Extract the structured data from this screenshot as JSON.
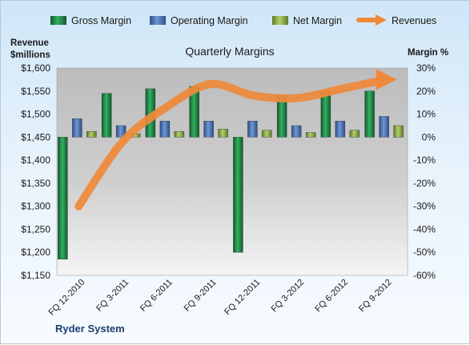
{
  "chart_data": {
    "type": "bar",
    "title": "Quarterly Margins",
    "company": "Ryder System",
    "left_axis_title_line1": "Revenue",
    "left_axis_title_line2": "$millions",
    "right_axis_title": "Margin %",
    "left_axis": {
      "min": 1150,
      "max": 1600,
      "step": 50
    },
    "right_axis": {
      "min": -60,
      "max": 30,
      "step": 10
    },
    "left_ticks": [
      "$1,600",
      "$1,550",
      "$1,500",
      "$1,450",
      "$1,400",
      "$1,350",
      "$1,300",
      "$1,250",
      "$1,200",
      "$1,150"
    ],
    "right_ticks": [
      "30%",
      "20%",
      "10%",
      "0%",
      "-10%",
      "-20%",
      "-30%",
      "-40%",
      "-50%",
      "-60%"
    ],
    "categories": [
      "FQ 12-2010",
      "FQ 3-2011",
      "FQ 6-2011",
      "FQ 9-2011",
      "FQ 12-2011",
      "FQ 3-2012",
      "FQ 6-2012",
      "FQ 9-2012"
    ],
    "series": [
      {
        "name": "Gross Margin",
        "axis": "right",
        "color": "#1e8a45",
        "values": [
          -53,
          19,
          21,
          22,
          -50,
          18,
          20,
          20
        ]
      },
      {
        "name": "Operating Margin",
        "axis": "right",
        "color": "#4f78b8",
        "values": [
          8,
          5,
          7,
          7,
          7,
          5,
          7,
          9
        ]
      },
      {
        "name": "Net Margin",
        "axis": "right",
        "color": "#8fb04a",
        "values": [
          2.5,
          1.5,
          2.5,
          3.5,
          3,
          2,
          3,
          5
        ]
      },
      {
        "name": "Revenues",
        "axis": "left",
        "color": "#f0893a",
        "values": [
          1300,
          1440,
          1515,
          1565,
          1540,
          1535,
          1555,
          1575
        ]
      }
    ],
    "legend_position": "top",
    "grid": false
  }
}
